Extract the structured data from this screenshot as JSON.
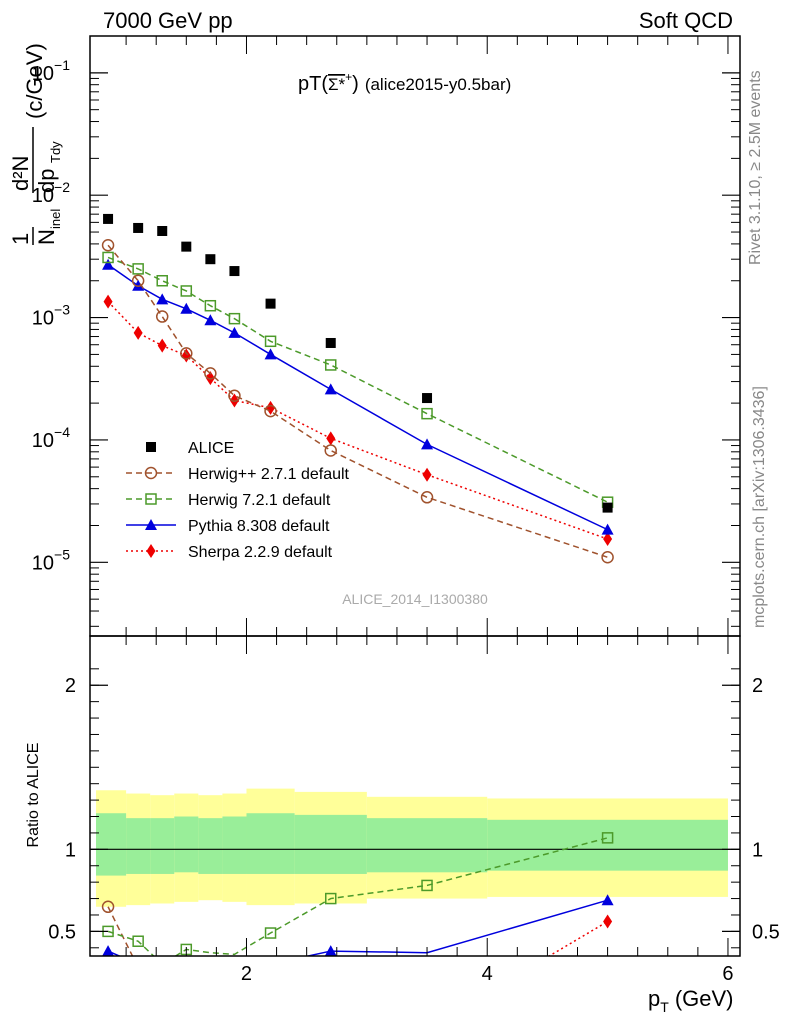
{
  "header": {
    "left": "7000 GeV pp",
    "right": "Soft QCD"
  },
  "side_labels": {
    "rivet": "Rivet 3.1.10, ≥ 2.5M events",
    "mcplots": "mcplots.cern.ch [arXiv:1306.3436]"
  },
  "watermark": "ALICE_2014_I1300380",
  "chart_data": [
    {
      "type": "line",
      "title_prefix": "pT(",
      "title_particle": "Σ*",
      "title_sup": "+",
      "title_suffix": ")",
      "title_tag": "(alice2015-y0.5bar)",
      "ylabel_prefix": "1",
      "ylabel_num": "d²N",
      "ylabel_den": "N",
      "ylabel_den_sub": "inel",
      "ylabel_den2": "dp",
      "ylabel_den2_sub": "Tdy",
      "ylabel_unit": "(c/GeV)",
      "yscale": "log",
      "ylim": [
        2.5e-06,
        0.2
      ],
      "xlim": [
        0.7,
        6.1
      ],
      "yticks": [
        {
          "value": 1e-05,
          "label_base": "10",
          "label_exp": "−5"
        },
        {
          "value": 0.0001,
          "label_base": "10",
          "label_exp": "−4"
        },
        {
          "value": 0.001,
          "label_base": "10",
          "label_exp": "−3"
        },
        {
          "value": 0.01,
          "label_base": "10",
          "label_exp": "−2"
        },
        {
          "value": 0.1,
          "label_base": "10",
          "label_exp": "−1"
        }
      ],
      "legend_position": "bottom-left",
      "series": [
        {
          "name": "ALICE",
          "color": "#000000",
          "marker": "square",
          "line": "none",
          "x": [
            0.85,
            1.1,
            1.3,
            1.5,
            1.7,
            1.9,
            2.2,
            2.7,
            3.5,
            5.0
          ],
          "y": [
            0.0064,
            0.0054,
            0.0051,
            0.0038,
            0.003,
            0.0024,
            0.0013,
            0.00062,
            0.00022,
            2.8e-05
          ]
        },
        {
          "name": "Herwig++ 2.7.1 default",
          "color": "#a0522d",
          "marker": "open-circle",
          "line": "dashed",
          "x": [
            0.85,
            1.1,
            1.3,
            1.5,
            1.7,
            1.9,
            2.2,
            2.7,
            3.5,
            5.0
          ],
          "y": [
            0.0039,
            0.002,
            0.00102,
            0.00051,
            0.00035,
            0.00023,
            0.000172,
            8.2e-05,
            3.4e-05,
            1.1e-05
          ]
        },
        {
          "name": "Herwig 7.2.1 default",
          "color": "#4c9a2a",
          "marker": "open-square",
          "line": "dashed",
          "x": [
            0.85,
            1.1,
            1.3,
            1.5,
            1.7,
            1.9,
            2.2,
            2.7,
            3.5,
            5.0
          ],
          "y": [
            0.0031,
            0.0025,
            0.002,
            0.00165,
            0.00125,
            0.00098,
            0.00064,
            0.00041,
            0.000164,
            3.1e-05
          ]
        },
        {
          "name": "Pythia 8.308 default",
          "color": "#0000dd",
          "marker": "triangle",
          "line": "solid",
          "x": [
            0.85,
            1.1,
            1.3,
            1.5,
            1.7,
            1.9,
            2.2,
            2.7,
            3.5,
            5.0
          ],
          "y": [
            0.0027,
            0.00182,
            0.00141,
            0.00118,
            0.00095,
            0.00075,
            0.0005,
            0.000259,
            9.2e-05,
            1.85e-05
          ]
        },
        {
          "name": "Sherpa 2.2.9 default",
          "color": "#ee0000",
          "marker": "diamond",
          "line": "dotted",
          "x": [
            0.85,
            1.1,
            1.3,
            1.5,
            1.7,
            1.9,
            2.2,
            2.7,
            3.5,
            5.0
          ],
          "y": [
            0.00135,
            0.00075,
            0.00059,
            0.00049,
            0.00032,
            0.00021,
            0.000183,
            0.000103,
            5.2e-05,
            1.55e-05
          ]
        }
      ]
    },
    {
      "type": "line",
      "ylabel": "Ratio to ALICE",
      "xlabel_base": "p",
      "xlabel_sub": "T",
      "xlabel_unit": "(GeV)",
      "ylim": [
        0.35,
        2.3
      ],
      "xlim": [
        0.7,
        6.1
      ],
      "yticks": [
        {
          "value": 0.5,
          "label": "0.5"
        },
        {
          "value": 1,
          "label": "1"
        },
        {
          "value": 2,
          "label": "2"
        }
      ],
      "xticks": [
        {
          "value": 2,
          "label": "2"
        },
        {
          "value": 4,
          "label": "4"
        },
        {
          "value": 6,
          "label": "6"
        }
      ],
      "reference_line": 1,
      "bands": {
        "edges": [
          0.75,
          1.0,
          1.2,
          1.4,
          1.6,
          1.8,
          2.0,
          2.4,
          3.0,
          4.0,
          6.0
        ],
        "yellow_lo": [
          0.65,
          0.66,
          0.67,
          0.68,
          0.69,
          0.68,
          0.66,
          0.67,
          0.7,
          0.71
        ],
        "yellow_hi": [
          1.36,
          1.34,
          1.33,
          1.34,
          1.33,
          1.34,
          1.37,
          1.35,
          1.32,
          1.31
        ],
        "green_lo": [
          0.84,
          0.85,
          0.85,
          0.86,
          0.85,
          0.85,
          0.85,
          0.85,
          0.86,
          0.87
        ],
        "green_hi": [
          1.22,
          1.19,
          1.19,
          1.2,
          1.19,
          1.2,
          1.22,
          1.21,
          1.19,
          1.18
        ]
      },
      "series": [
        {
          "name": "Herwig++ 2.7.1 default",
          "color": "#a0522d",
          "marker": "open-circle",
          "line": "dashed",
          "x": [
            0.85,
            1.1
          ],
          "y": [
            0.65,
            0.28
          ]
        },
        {
          "name": "Herwig 7.2.1 default",
          "color": "#4c9a2a",
          "marker": "open-square",
          "line": "dashed",
          "x": [
            0.85,
            1.1,
            1.3,
            1.5,
            1.7,
            1.9,
            2.2,
            2.7,
            3.5,
            5.0
          ],
          "y": [
            0.5,
            0.44,
            0.3,
            0.39,
            0.37,
            0.36,
            0.49,
            0.7,
            0.78,
            1.07
          ]
        },
        {
          "name": "Pythia 8.308 default",
          "color": "#0000dd",
          "marker": "triangle",
          "line": "solid",
          "x": [
            0.85,
            1.1,
            2.2,
            2.7,
            3.5,
            5.0
          ],
          "y": [
            0.38,
            0.3,
            0.3,
            0.38,
            0.37,
            0.69
          ]
        },
        {
          "name": "Sherpa 2.2.9 default",
          "color": "#ee0000",
          "marker": "diamond",
          "line": "dotted",
          "x": [
            4.4,
            5.0
          ],
          "y": [
            0.3,
            0.56
          ]
        }
      ]
    }
  ]
}
